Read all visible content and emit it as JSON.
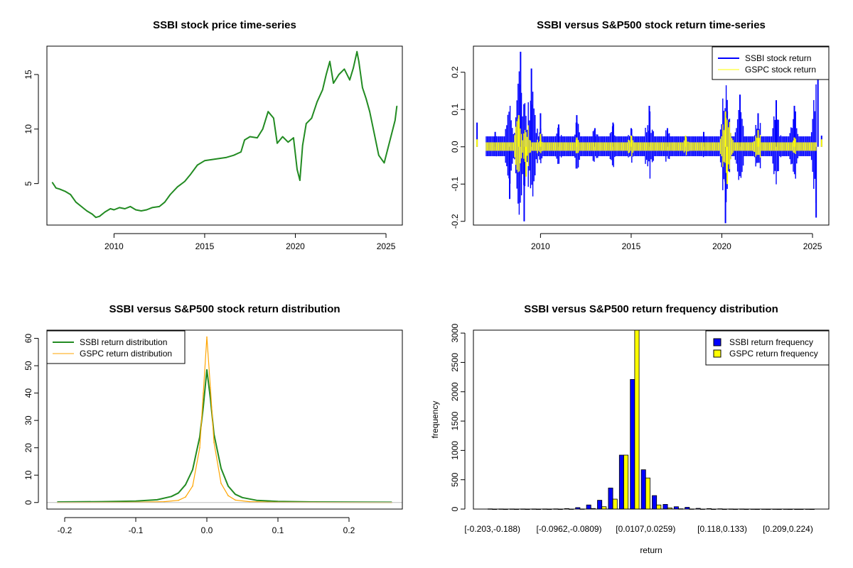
{
  "chart_data": [
    {
      "type": "line",
      "title": "SSBI stock price time-series",
      "xlabel": "",
      "ylabel": "",
      "xlim": [
        2006.3,
        2025.9
      ],
      "ylim": [
        1.2,
        17.6
      ],
      "x_ticks": [
        2010,
        2015,
        2020,
        2025
      ],
      "y_ticks": [
        5,
        10,
        15
      ],
      "series": [
        {
          "color": "#228b22",
          "x": [
            2006.6,
            2006.8,
            2007.0,
            2007.3,
            2007.6,
            2007.9,
            2008.2,
            2008.5,
            2008.8,
            2009.0,
            2009.2,
            2009.5,
            2009.8,
            2010.0,
            2010.3,
            2010.6,
            2010.9,
            2011.2,
            2011.5,
            2011.8,
            2012.1,
            2012.5,
            2012.8,
            2013.1,
            2013.5,
            2013.9,
            2014.2,
            2014.6,
            2015.0,
            2015.4,
            2015.8,
            2016.2,
            2016.6,
            2017.0,
            2017.2,
            2017.5,
            2017.9,
            2018.2,
            2018.5,
            2018.8,
            2019.0,
            2019.3,
            2019.6,
            2019.9,
            2020.1,
            2020.25,
            2020.4,
            2020.6,
            2020.9,
            2021.2,
            2021.5,
            2021.7,
            2021.9,
            2022.1,
            2022.4,
            2022.7,
            2023.0,
            2023.2,
            2023.4,
            2023.5,
            2023.7,
            2023.9,
            2024.1,
            2024.3,
            2024.6,
            2024.9,
            2025.1,
            2025.3,
            2025.5,
            2025.6
          ],
          "y": [
            5.1,
            4.6,
            4.5,
            4.3,
            4.0,
            3.3,
            2.9,
            2.5,
            2.2,
            1.9,
            2.0,
            2.4,
            2.7,
            2.6,
            2.8,
            2.7,
            2.9,
            2.6,
            2.5,
            2.6,
            2.8,
            2.9,
            3.3,
            4.0,
            4.7,
            5.2,
            5.8,
            6.7,
            7.1,
            7.2,
            7.3,
            7.4,
            7.6,
            7.9,
            9.0,
            9.3,
            9.2,
            10.0,
            11.6,
            11.0,
            8.7,
            9.3,
            8.8,
            9.2,
            6.3,
            5.3,
            8.5,
            10.5,
            11.0,
            12.5,
            13.6,
            15.0,
            16.2,
            14.2,
            15.0,
            15.5,
            14.5,
            15.6,
            17.1,
            16.2,
            13.8,
            12.8,
            11.6,
            10.0,
            7.6,
            6.9,
            8.2,
            9.5,
            10.8,
            12.1
          ]
        }
      ]
    },
    {
      "type": "line",
      "title": "SSBI versus S&P500 stock return time-series",
      "xlabel": "",
      "ylabel": "",
      "xlim": [
        2006.3,
        2025.9
      ],
      "ylim": [
        -0.21,
        0.27
      ],
      "x_ticks": [
        2010,
        2015,
        2020,
        2025
      ],
      "y_ticks": [
        -0.2,
        -0.1,
        0.0,
        0.1,
        0.2
      ],
      "y_tick_labels": [
        "-0.2",
        "-0.1",
        "0.0",
        "0.1",
        "0.2"
      ],
      "legend": "top-right",
      "series": [
        {
          "name": "SSBI stock return",
          "color": "#0000ff",
          "x": [
            2006.5,
            2007.5,
            2008.3,
            2008.9,
            2009.1,
            2009.5,
            2010.0,
            2011.0,
            2012.0,
            2013.0,
            2014.0,
            2015.0,
            2016.0,
            2017.0,
            2018.0,
            2019.0,
            2020.2,
            2020.3,
            2021.0,
            2022.0,
            2023.0,
            2024.0,
            2025.2,
            2025.3,
            2025.5
          ],
          "y": [
            0.065,
            0.04,
            -0.14,
            0.255,
            -0.2,
            0.21,
            0.09,
            0.06,
            0.085,
            0.05,
            0.065,
            0.05,
            0.11,
            0.05,
            0.03,
            0.04,
            -0.205,
            0.095,
            0.14,
            0.09,
            0.125,
            0.11,
            -0.19,
            0.225,
            0.03
          ]
        },
        {
          "name": "GSPC stock return",
          "color": "#ffff00",
          "x": [
            2006.5,
            2008.8,
            2009.2,
            2010.0,
            2012.0,
            2015.0,
            2018.0,
            2020.2,
            2020.3,
            2022.0,
            2024.0,
            2025.5
          ],
          "y": [
            0.02,
            0.085,
            -0.08,
            0.035,
            0.025,
            0.03,
            0.03,
            0.095,
            -0.1,
            0.045,
            0.025,
            0.02
          ]
        }
      ]
    },
    {
      "type": "line",
      "title": "SSBI versus S&P500 stock return distribution",
      "xlabel": "",
      "ylabel": "",
      "xlim": [
        -0.225,
        0.275
      ],
      "ylim": [
        -2.4,
        63
      ],
      "x_ticks": [
        -0.2,
        -0.1,
        0.0,
        0.1,
        0.2
      ],
      "x_tick_labels": [
        "-0.2",
        "-0.1",
        "0.0",
        "0.1",
        "0.2"
      ],
      "y_ticks": [
        0,
        10,
        20,
        30,
        40,
        50,
        60
      ],
      "legend": "top-left",
      "series": [
        {
          "name": "SSBI return distribution",
          "color": "#228b22",
          "x": [
            -0.21,
            -0.15,
            -0.1,
            -0.07,
            -0.05,
            -0.04,
            -0.03,
            -0.02,
            -0.01,
            -0.005,
            0.0,
            0.005,
            0.01,
            0.02,
            0.03,
            0.04,
            0.05,
            0.07,
            0.1,
            0.15,
            0.26
          ],
          "y": [
            0.2,
            0.3,
            0.5,
            1.0,
            2.2,
            3.5,
            6.5,
            12.0,
            24.0,
            35.0,
            48.5,
            38.0,
            25.0,
            12.5,
            6.0,
            3.0,
            1.8,
            0.8,
            0.4,
            0.2,
            0.1
          ]
        },
        {
          "name": "GSPC return distribution",
          "color": "#ffa500",
          "x": [
            -0.21,
            -0.1,
            -0.06,
            -0.04,
            -0.03,
            -0.02,
            -0.01,
            -0.005,
            0.0,
            0.005,
            0.01,
            0.02,
            0.03,
            0.04,
            0.06,
            0.1,
            0.26
          ],
          "y": [
            0.0,
            0.1,
            0.3,
            0.8,
            2.0,
            6.0,
            20.0,
            40.0,
            60.5,
            42.0,
            22.0,
            7.0,
            2.5,
            0.9,
            0.3,
            0.1,
            0.0
          ]
        }
      ]
    },
    {
      "type": "bar",
      "title": "SSBI versus S&P500 return frequency distribution",
      "xlabel": "return",
      "ylabel": "frequency",
      "ylim": [
        0,
        3050
      ],
      "y_ticks": [
        0,
        500,
        1000,
        1500,
        2000,
        2500,
        3000
      ],
      "category_labels": [
        "[-0.203,-0.188)",
        "[-0.0962,-0.0809)",
        "[0.0107,0.0259)",
        "[0.118,0.133)",
        "[0.209,0.224)"
      ],
      "labeled_indices": [
        0,
        7,
        14,
        21,
        27
      ],
      "legend": "top-right",
      "series": [
        {
          "name": "SSBI return frequency",
          "color": "#0000ff",
          "values": [
            4,
            2,
            2,
            3,
            2,
            3,
            4,
            8,
            25,
            70,
            150,
            360,
            920,
            2210,
            670,
            230,
            80,
            40,
            30,
            12,
            8,
            5,
            3,
            2,
            1,
            1,
            1,
            1,
            0,
            1
          ]
        },
        {
          "name": "GSPC return frequency",
          "color": "#ffff00",
          "values": [
            0,
            0,
            0,
            0,
            0,
            0,
            0,
            1,
            3,
            10,
            40,
            170,
            920,
            3050,
            530,
            70,
            20,
            5,
            2,
            1,
            0,
            0,
            0,
            0,
            0,
            0,
            0,
            0,
            0,
            0
          ]
        }
      ]
    }
  ]
}
